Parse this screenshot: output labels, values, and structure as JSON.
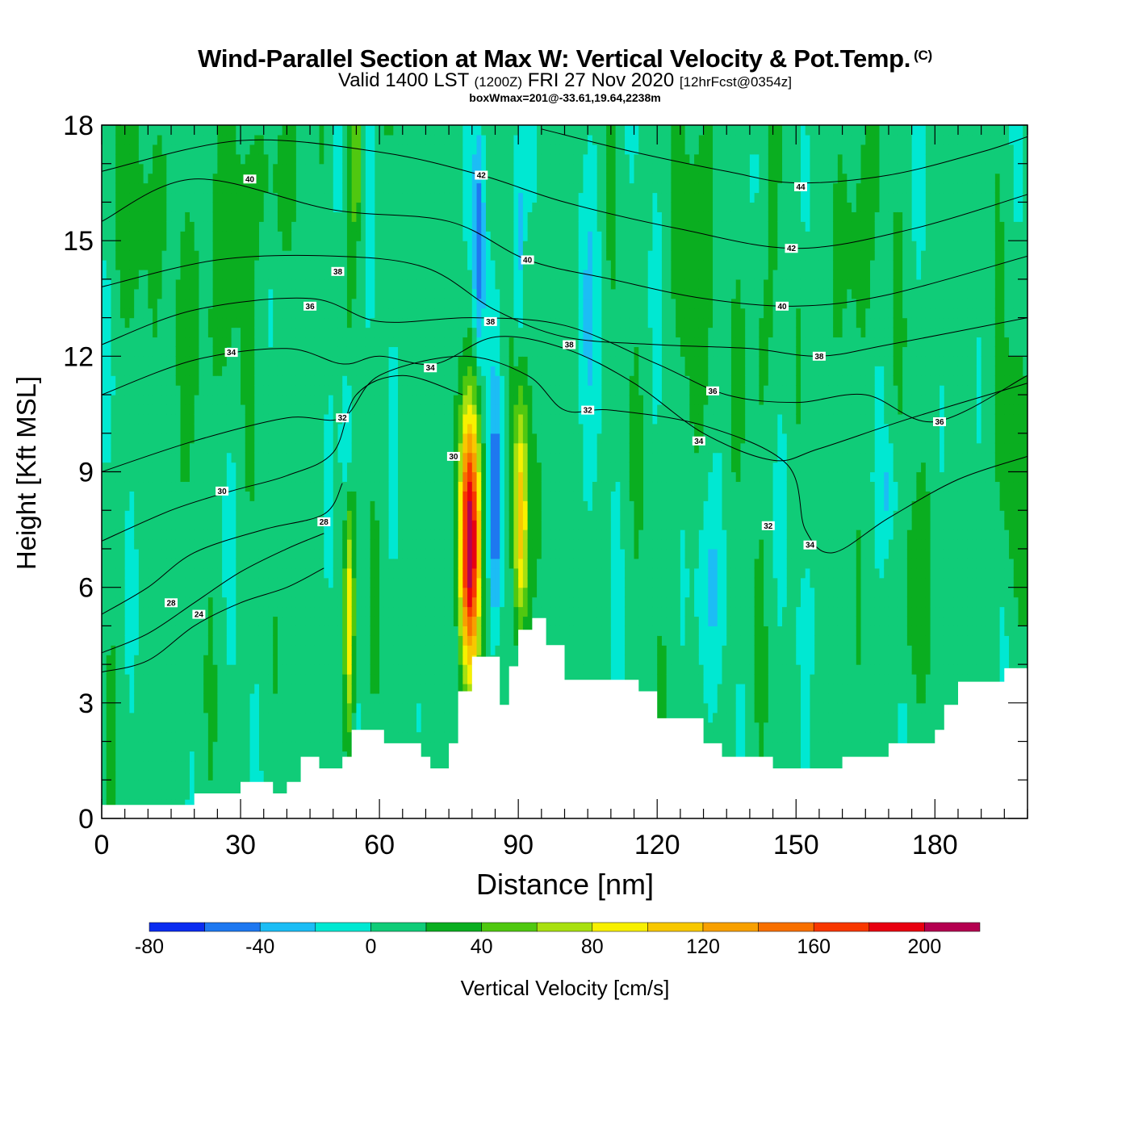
{
  "header": {
    "title": "Wind-Parallel Section at Max W: Vertical Velocity & Pot.Temp.",
    "copyright": "(C)",
    "valid_prefix": "Valid 1400 LST",
    "valid_zulu": "(1200Z)",
    "valid_date": "FRI 27 Nov 2020",
    "forecast": "[12hrFcst@0354z]",
    "box_wmax": "boxWmax=201@-33.61,19.64,2238m"
  },
  "chart_data": {
    "type": "heatmap",
    "title": "Wind-Parallel Section at Max W: Vertical Velocity & Pot.Temp.",
    "xlabel": "Distance [nm]",
    "ylabel": "Height [Kft MSL]",
    "xlim": [
      0,
      200
    ],
    "ylim": [
      0,
      18
    ],
    "x_ticks": [
      0,
      30,
      60,
      90,
      120,
      150,
      180
    ],
    "y_ticks": [
      0,
      3,
      6,
      9,
      12,
      15,
      18
    ],
    "colorbar": {
      "label": "Vertical Velocity [cm/s]",
      "ticks": [
        -80,
        -40,
        0,
        40,
        80,
        120,
        160,
        200
      ],
      "levels": [
        -80,
        -60,
        -40,
        -20,
        0,
        20,
        40,
        60,
        80,
        100,
        120,
        140,
        160,
        180,
        200,
        220
      ],
      "colors": [
        "#0a2cf0",
        "#1e78f0",
        "#1cbdf5",
        "#00e8d2",
        "#10cc78",
        "#0aae20",
        "#50c810",
        "#a8e010",
        "#f8f000",
        "#f8c800",
        "#f8a000",
        "#f87000",
        "#f83800",
        "#e80010",
        "#b40050"
      ]
    },
    "terrain": [
      [
        0,
        0.35
      ],
      [
        10,
        0.35
      ],
      [
        20,
        0.65
      ],
      [
        30,
        0.95
      ],
      [
        37,
        0.65
      ],
      [
        40,
        0.95
      ],
      [
        43,
        1.6
      ],
      [
        47,
        1.3
      ],
      [
        52,
        1.6
      ],
      [
        54,
        2.3
      ],
      [
        58,
        2.3
      ],
      [
        61,
        1.95
      ],
      [
        67,
        1.95
      ],
      [
        69,
        1.6
      ],
      [
        71,
        1.3
      ],
      [
        75,
        1.95
      ],
      [
        77,
        3.3
      ],
      [
        80,
        4.2
      ],
      [
        83,
        4.2
      ],
      [
        86,
        2.95
      ],
      [
        88,
        3.95
      ],
      [
        90,
        4.9
      ],
      [
        93,
        5.2
      ],
      [
        96,
        4.5
      ],
      [
        100,
        3.6
      ],
      [
        112,
        3.6
      ],
      [
        116,
        3.3
      ],
      [
        120,
        2.6
      ],
      [
        126,
        2.6
      ],
      [
        130,
        1.95
      ],
      [
        134,
        1.6
      ],
      [
        145,
        1.3
      ],
      [
        160,
        1.6
      ],
      [
        170,
        1.95
      ],
      [
        180,
        2.3
      ],
      [
        182,
        2.95
      ],
      [
        185,
        3.55
      ],
      [
        195,
        3.9
      ],
      [
        200,
        3.9
      ]
    ],
    "w_features": [
      {
        "x": 79.5,
        "y": 7.2,
        "wx": 2.2,
        "wy": 3.4,
        "w": 201
      },
      {
        "x": 90.5,
        "y": 7.8,
        "wx": 1.6,
        "wy": 3.2,
        "w": 110
      },
      {
        "x": 53.5,
        "y": 5.0,
        "wx": 1.1,
        "wy": 3.2,
        "w": 95
      },
      {
        "x": 85.0,
        "y": 8.0,
        "wx": 1.4,
        "wy": 3.2,
        "w": -60
      },
      {
        "x": 81.5,
        "y": 15.0,
        "wx": 1.3,
        "wy": 3.2,
        "w": -60
      },
      {
        "x": 90.0,
        "y": 15.0,
        "wx": 1.1,
        "wy": 3.0,
        "w": -50
      },
      {
        "x": 53.0,
        "y": 10.0,
        "wx": 1.3,
        "wy": 1.9,
        "w": -45
      },
      {
        "x": 51.0,
        "y": 17.0,
        "wx": 1.2,
        "wy": 1.4,
        "w": -30
      },
      {
        "x": 105.0,
        "y": 13.5,
        "wx": 2.5,
        "wy": 4.0,
        "w": -26
      },
      {
        "x": 131.0,
        "y": 6.0,
        "wx": 3.5,
        "wy": 2.5,
        "w": -28
      },
      {
        "x": 152.0,
        "y": 16.5,
        "wx": 1.0,
        "wy": 1.6,
        "w": -26
      },
      {
        "x": 170.0,
        "y": 8.5,
        "wx": 2.0,
        "wy": 1.2,
        "w": -25
      },
      {
        "x": 152.0,
        "y": 5.0,
        "wx": 1.5,
        "wy": 1.4,
        "w": -24
      },
      {
        "x": 55.0,
        "y": 17.0,
        "wx": 1.5,
        "wy": 1.8,
        "w": 55
      },
      {
        "x": 128.0,
        "y": 14.0,
        "wx": 3.5,
        "wy": 4.5,
        "w": 26
      },
      {
        "x": 163.0,
        "y": 15.0,
        "wx": 4.0,
        "wy": 3.5,
        "w": 24
      },
      {
        "x": 142.0,
        "y": 12.5,
        "wx": 3.5,
        "wy": 3.0,
        "w": 22
      },
      {
        "x": 22.0,
        "y": 13.0,
        "wx": 7.0,
        "wy": 3.0,
        "w": 22
      },
      {
        "x": 35.0,
        "y": 16.5,
        "wx": 8.0,
        "wy": 2.0,
        "w": 21
      },
      {
        "x": 8.0,
        "y": 16.0,
        "wx": 6.0,
        "wy": 2.5,
        "w": 20
      },
      {
        "x": 196.0,
        "y": 9.0,
        "wx": 3.0,
        "wy": 3.0,
        "w": 24
      },
      {
        "x": 175.0,
        "y": 5.5,
        "wx": 3.0,
        "wy": 2.5,
        "w": 24
      }
    ],
    "theta_contours": [
      {
        "level": 24,
        "points": [
          [
            0,
            3.8
          ],
          [
            10,
            4.1
          ],
          [
            20,
            5.0
          ],
          [
            30,
            5.6
          ],
          [
            40,
            6.0
          ],
          [
            48,
            6.5
          ]
        ]
      },
      {
        "level": 26,
        "points": [
          [
            0,
            4.3
          ],
          [
            10,
            4.8
          ],
          [
            20,
            5.6
          ],
          [
            30,
            6.4
          ],
          [
            40,
            7.0
          ],
          [
            48,
            7.4
          ]
        ]
      },
      {
        "level": 28,
        "points": [
          [
            0,
            5.3
          ],
          [
            10,
            6.0
          ],
          [
            20,
            6.9
          ],
          [
            35,
            7.5
          ],
          [
            48,
            7.9
          ],
          [
            52,
            8.7
          ]
        ]
      },
      {
        "level": 30,
        "points": [
          [
            0,
            7.2
          ],
          [
            15,
            8.0
          ],
          [
            28,
            8.5
          ],
          [
            40,
            8.9
          ],
          [
            50,
            9.5
          ],
          [
            55,
            11.0
          ],
          [
            65,
            11.5
          ],
          [
            78,
            11.0
          ]
        ]
      },
      {
        "level": 32,
        "points": [
          [
            0,
            9.0
          ],
          [
            20,
            9.8
          ],
          [
            40,
            10.4
          ],
          [
            52,
            10.4
          ],
          [
            60,
            11.5
          ],
          [
            78,
            12.0
          ],
          [
            92,
            11.5
          ],
          [
            100,
            10.6
          ],
          [
            110,
            10.6
          ],
          [
            130,
            10.2
          ],
          [
            148,
            9.2
          ],
          [
            152,
            7.5
          ],
          [
            158,
            6.9
          ],
          [
            170,
            7.8
          ],
          [
            185,
            8.8
          ],
          [
            200,
            9.4
          ]
        ]
      },
      {
        "level": 34,
        "points": [
          [
            0,
            11.0
          ],
          [
            20,
            11.9
          ],
          [
            40,
            12.2
          ],
          [
            52,
            11.8
          ],
          [
            60,
            12.0
          ],
          [
            72,
            11.8
          ],
          [
            85,
            12.5
          ],
          [
            100,
            12.2
          ],
          [
            115,
            11.3
          ],
          [
            130,
            10.0
          ],
          [
            145,
            9.3
          ],
          [
            155,
            9.6
          ],
          [
            175,
            10.4
          ],
          [
            200,
            11.3
          ]
        ]
      },
      {
        "level": 36,
        "points": [
          [
            0,
            12.3
          ],
          [
            20,
            13.2
          ],
          [
            45,
            13.5
          ],
          [
            60,
            12.9
          ],
          [
            80,
            13.0
          ],
          [
            100,
            12.8
          ],
          [
            120,
            11.8
          ],
          [
            135,
            11.0
          ],
          [
            150,
            10.8
          ],
          [
            165,
            11.0
          ],
          [
            180,
            10.3
          ],
          [
            200,
            11.5
          ]
        ]
      },
      {
        "level": 38,
        "points": [
          [
            0,
            13.8
          ],
          [
            25,
            14.5
          ],
          [
            50,
            14.6
          ],
          [
            70,
            14.3
          ],
          [
            85,
            13.2
          ],
          [
            100,
            12.5
          ],
          [
            120,
            12.3
          ],
          [
            140,
            12.2
          ],
          [
            155,
            12.0
          ],
          [
            170,
            12.3
          ],
          [
            200,
            13.0
          ]
        ]
      },
      {
        "level": 40,
        "points": [
          [
            0,
            15.5
          ],
          [
            20,
            16.6
          ],
          [
            50,
            15.8
          ],
          [
            75,
            15.5
          ],
          [
            92,
            14.5
          ],
          [
            110,
            14.0
          ],
          [
            130,
            13.5
          ],
          [
            150,
            13.3
          ],
          [
            170,
            13.6
          ],
          [
            200,
            14.6
          ]
        ]
      },
      {
        "level": 42,
        "points": [
          [
            0,
            16.8
          ],
          [
            30,
            17.6
          ],
          [
            60,
            17.3
          ],
          [
            82,
            16.7
          ],
          [
            100,
            16.0
          ],
          [
            125,
            15.3
          ],
          [
            150,
            14.8
          ],
          [
            175,
            15.3
          ],
          [
            200,
            16.2
          ]
        ]
      },
      {
        "level": 44,
        "points": [
          [
            95,
            17.9
          ],
          [
            115,
            17.3
          ],
          [
            135,
            16.8
          ],
          [
            150,
            16.5
          ],
          [
            170,
            16.7
          ],
          [
            190,
            17.3
          ],
          [
            200,
            17.7
          ]
        ]
      }
    ],
    "contour_labels": [
      {
        "text": "40",
        "x": 32,
        "y": 16.6
      },
      {
        "text": "42",
        "x": 82,
        "y": 16.7
      },
      {
        "text": "44",
        "x": 151,
        "y": 16.4
      },
      {
        "text": "42",
        "x": 149,
        "y": 14.8
      },
      {
        "text": "40",
        "x": 92,
        "y": 14.5
      },
      {
        "text": "38",
        "x": 51,
        "y": 14.2
      },
      {
        "text": "40",
        "x": 147,
        "y": 13.3
      },
      {
        "text": "36",
        "x": 45,
        "y": 13.3
      },
      {
        "text": "38",
        "x": 84,
        "y": 12.9
      },
      {
        "text": "38",
        "x": 101,
        "y": 12.3
      },
      {
        "text": "38",
        "x": 155,
        "y": 12.0
      },
      {
        "text": "34",
        "x": 28,
        "y": 12.1
      },
      {
        "text": "34",
        "x": 71,
        "y": 11.7
      },
      {
        "text": "36",
        "x": 132,
        "y": 11.1
      },
      {
        "text": "32",
        "x": 105,
        "y": 10.6
      },
      {
        "text": "32",
        "x": 52,
        "y": 10.4
      },
      {
        "text": "36",
        "x": 181,
        "y": 10.3
      },
      {
        "text": "34",
        "x": 129,
        "y": 9.8
      },
      {
        "text": "30",
        "x": 76,
        "y": 9.4
      },
      {
        "text": "30",
        "x": 26,
        "y": 8.5
      },
      {
        "text": "32",
        "x": 144,
        "y": 7.6
      },
      {
        "text": "34",
        "x": 153,
        "y": 7.1
      },
      {
        "text": "28",
        "x": 48,
        "y": 7.7
      },
      {
        "text": "28",
        "x": 15,
        "y": 5.6
      },
      {
        "text": "24",
        "x": 21,
        "y": 5.3
      }
    ]
  }
}
